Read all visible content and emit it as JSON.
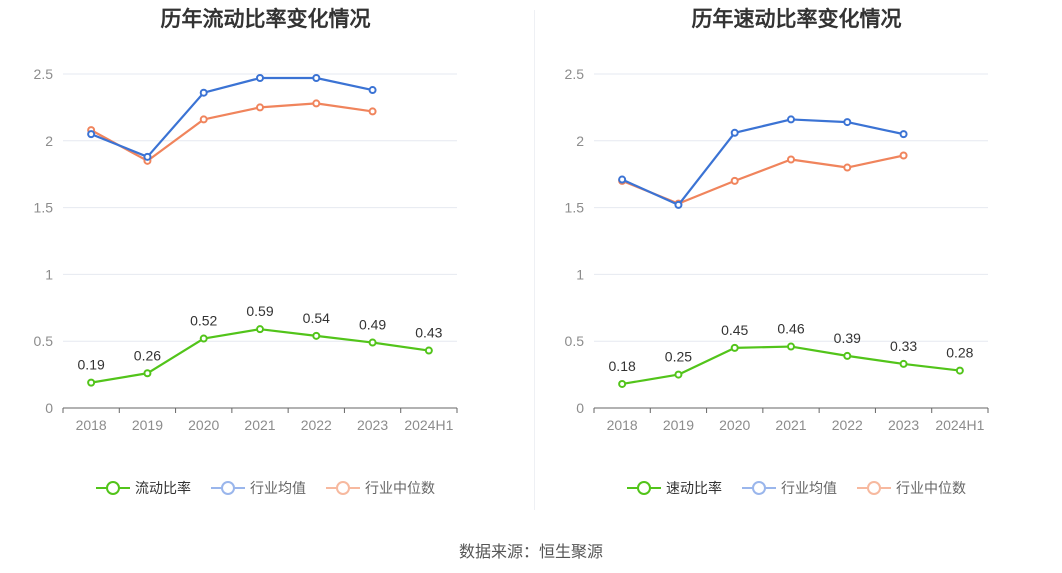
{
  "chart_data": [
    {
      "type": "line",
      "title": "历年流动比率变化情况",
      "categories": [
        "2018",
        "2019",
        "2020",
        "2021",
        "2022",
        "2023",
        "2024H1"
      ],
      "ylim": [
        0,
        2.5
      ],
      "yticks": [
        "0",
        "0.5",
        "1",
        "1.5",
        "2",
        "2.5"
      ],
      "grid": true,
      "legend_position": "bottom",
      "series": [
        {
          "name": "流动比率",
          "color": "#52c41a",
          "values": [
            0.19,
            0.26,
            0.52,
            0.59,
            0.54,
            0.49,
            0.43
          ],
          "labels": [
            "0.19",
            "0.26",
            "0.52",
            "0.59",
            "0.54",
            "0.49",
            "0.43"
          ]
        },
        {
          "name": "行业均值",
          "color": "#3b73d4",
          "values": [
            2.05,
            1.88,
            2.36,
            2.47,
            2.47,
            2.38,
            null
          ]
        },
        {
          "name": "行业中位数",
          "color": "#f0845c",
          "values": [
            2.08,
            1.85,
            2.16,
            2.25,
            2.28,
            2.22,
            null
          ]
        }
      ]
    },
    {
      "type": "line",
      "title": "历年速动比率变化情况",
      "categories": [
        "2018",
        "2019",
        "2020",
        "2021",
        "2022",
        "2023",
        "2024H1"
      ],
      "ylim": [
        0,
        2.5
      ],
      "yticks": [
        "0",
        "0.5",
        "1",
        "1.5",
        "2",
        "2.5"
      ],
      "grid": true,
      "legend_position": "bottom",
      "series": [
        {
          "name": "速动比率",
          "color": "#52c41a",
          "values": [
            0.18,
            0.25,
            0.45,
            0.46,
            0.39,
            0.33,
            0.28
          ],
          "labels": [
            "0.18",
            "0.25",
            "0.45",
            "0.46",
            "0.39",
            "0.33",
            "0.28"
          ]
        },
        {
          "name": "行业均值",
          "color": "#3b73d4",
          "values": [
            1.71,
            1.52,
            2.06,
            2.16,
            2.14,
            2.05,
            null
          ]
        },
        {
          "name": "行业中位数",
          "color": "#f0845c",
          "values": [
            1.7,
            1.53,
            1.7,
            1.86,
            1.8,
            1.89,
            null
          ]
        }
      ]
    }
  ],
  "legend_colors": {
    "流动比率": "#52c41a",
    "行业均值": "#9ab6ec",
    "行业中位数": "#f7b99f"
  },
  "source": "数据来源：恒生聚源"
}
